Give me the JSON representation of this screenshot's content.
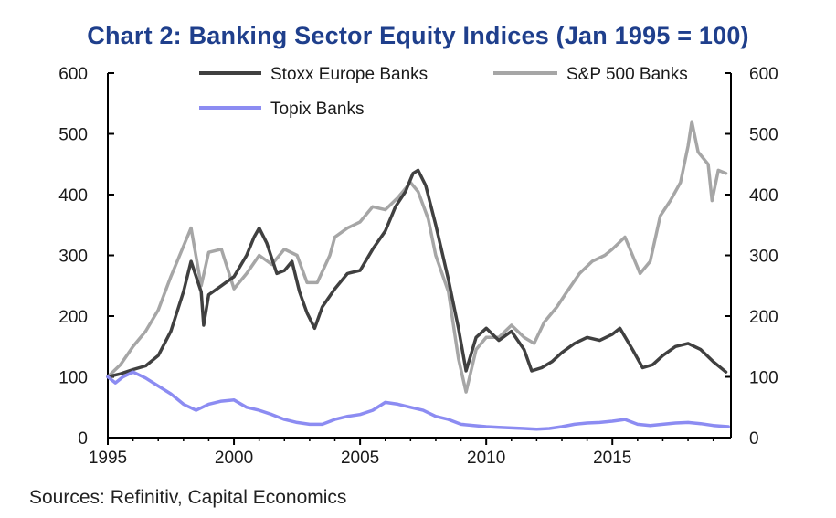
{
  "title": "Chart 2: Banking Sector Equity Indices (Jan 1995 = 100)",
  "source": "Sources: Refinitiv, Capital Economics",
  "chart_data": {
    "type": "line",
    "title": "Chart 2: Banking Sector Equity Indices (Jan 1995 = 100)",
    "xlabel": "",
    "ylabel": "",
    "xlim": [
      1995,
      2019.7
    ],
    "ylim": [
      0,
      600
    ],
    "y_ticks": [
      0,
      100,
      200,
      300,
      400,
      500,
      600
    ],
    "y_tick_labels": [
      "0",
      "100",
      "200",
      "300",
      "400",
      "500",
      "600"
    ],
    "x_ticks": [
      1995,
      2000,
      2005,
      2010,
      2015
    ],
    "x_tick_labels": [
      "1995",
      "2000",
      "2005",
      "2010",
      "2015"
    ],
    "legend_position": "top",
    "series": [
      {
        "name": "Stoxx Europe Banks",
        "color": "#404040",
        "points": [
          [
            1995.0,
            100
          ],
          [
            1995.5,
            105
          ],
          [
            1996.0,
            112
          ],
          [
            1996.5,
            118
          ],
          [
            1997.0,
            135
          ],
          [
            1997.5,
            175
          ],
          [
            1998.0,
            240
          ],
          [
            1998.3,
            290
          ],
          [
            1998.7,
            240
          ],
          [
            1998.8,
            185
          ],
          [
            1999.0,
            235
          ],
          [
            1999.5,
            250
          ],
          [
            2000.0,
            265
          ],
          [
            2000.5,
            300
          ],
          [
            2000.8,
            330
          ],
          [
            2001.0,
            345
          ],
          [
            2001.3,
            320
          ],
          [
            2001.7,
            270
          ],
          [
            2002.0,
            275
          ],
          [
            2002.3,
            290
          ],
          [
            2002.6,
            240
          ],
          [
            2002.9,
            205
          ],
          [
            2003.2,
            180
          ],
          [
            2003.5,
            215
          ],
          [
            2004.0,
            245
          ],
          [
            2004.5,
            270
          ],
          [
            2005.0,
            275
          ],
          [
            2005.5,
            310
          ],
          [
            2006.0,
            340
          ],
          [
            2006.4,
            380
          ],
          [
            2006.8,
            405
          ],
          [
            2007.1,
            435
          ],
          [
            2007.3,
            440
          ],
          [
            2007.6,
            415
          ],
          [
            2008.0,
            350
          ],
          [
            2008.5,
            260
          ],
          [
            2008.9,
            180
          ],
          [
            2009.2,
            110
          ],
          [
            2009.6,
            165
          ],
          [
            2010.0,
            180
          ],
          [
            2010.5,
            160
          ],
          [
            2011.0,
            175
          ],
          [
            2011.5,
            145
          ],
          [
            2011.8,
            110
          ],
          [
            2012.2,
            115
          ],
          [
            2012.6,
            125
          ],
          [
            2013.0,
            140
          ],
          [
            2013.5,
            155
          ],
          [
            2014.0,
            165
          ],
          [
            2014.5,
            160
          ],
          [
            2015.0,
            170
          ],
          [
            2015.3,
            180
          ],
          [
            2015.8,
            145
          ],
          [
            2016.2,
            115
          ],
          [
            2016.6,
            120
          ],
          [
            2017.0,
            135
          ],
          [
            2017.5,
            150
          ],
          [
            2018.0,
            155
          ],
          [
            2018.5,
            145
          ],
          [
            2019.0,
            125
          ],
          [
            2019.5,
            108
          ]
        ]
      },
      {
        "name": "S&P 500 Banks",
        "color": "#a6a6a6",
        "points": [
          [
            1995.0,
            100
          ],
          [
            1995.5,
            120
          ],
          [
            1996.0,
            150
          ],
          [
            1996.5,
            175
          ],
          [
            1997.0,
            210
          ],
          [
            1997.5,
            265
          ],
          [
            1998.0,
            315
          ],
          [
            1998.3,
            345
          ],
          [
            1998.7,
            250
          ],
          [
            1999.0,
            305
          ],
          [
            1999.5,
            310
          ],
          [
            2000.0,
            245
          ],
          [
            2000.5,
            270
          ],
          [
            2001.0,
            300
          ],
          [
            2001.5,
            285
          ],
          [
            2002.0,
            310
          ],
          [
            2002.5,
            300
          ],
          [
            2002.9,
            255
          ],
          [
            2003.3,
            255
          ],
          [
            2003.8,
            300
          ],
          [
            2004.0,
            330
          ],
          [
            2004.5,
            345
          ],
          [
            2005.0,
            355
          ],
          [
            2005.5,
            380
          ],
          [
            2006.0,
            375
          ],
          [
            2006.5,
            395
          ],
          [
            2007.0,
            420
          ],
          [
            2007.3,
            405
          ],
          [
            2007.7,
            360
          ],
          [
            2008.0,
            300
          ],
          [
            2008.5,
            240
          ],
          [
            2008.9,
            130
          ],
          [
            2009.2,
            75
          ],
          [
            2009.6,
            145
          ],
          [
            2010.0,
            165
          ],
          [
            2010.5,
            165
          ],
          [
            2011.0,
            185
          ],
          [
            2011.5,
            165
          ],
          [
            2011.9,
            155
          ],
          [
            2012.3,
            190
          ],
          [
            2012.8,
            215
          ],
          [
            2013.2,
            240
          ],
          [
            2013.7,
            270
          ],
          [
            2014.2,
            290
          ],
          [
            2014.7,
            300
          ],
          [
            2015.0,
            310
          ],
          [
            2015.5,
            330
          ],
          [
            2015.8,
            300
          ],
          [
            2016.1,
            270
          ],
          [
            2016.5,
            290
          ],
          [
            2016.9,
            365
          ],
          [
            2017.3,
            390
          ],
          [
            2017.7,
            420
          ],
          [
            2018.0,
            480
          ],
          [
            2018.15,
            520
          ],
          [
            2018.4,
            470
          ],
          [
            2018.8,
            450
          ],
          [
            2018.95,
            390
          ],
          [
            2019.2,
            440
          ],
          [
            2019.5,
            435
          ]
        ]
      },
      {
        "name": "Topix Banks",
        "color": "#8c8cf2",
        "points": [
          [
            1995.0,
            100
          ],
          [
            1995.3,
            90
          ],
          [
            1995.6,
            100
          ],
          [
            1996.0,
            108
          ],
          [
            1996.5,
            98
          ],
          [
            1997.0,
            85
          ],
          [
            1997.5,
            72
          ],
          [
            1998.0,
            55
          ],
          [
            1998.5,
            45
          ],
          [
            1999.0,
            55
          ],
          [
            1999.5,
            60
          ],
          [
            2000.0,
            62
          ],
          [
            2000.5,
            50
          ],
          [
            2001.0,
            45
          ],
          [
            2001.5,
            38
          ],
          [
            2002.0,
            30
          ],
          [
            2002.5,
            25
          ],
          [
            2003.0,
            22
          ],
          [
            2003.5,
            22
          ],
          [
            2004.0,
            30
          ],
          [
            2004.5,
            35
          ],
          [
            2005.0,
            38
          ],
          [
            2005.5,
            45
          ],
          [
            2006.0,
            58
          ],
          [
            2006.5,
            55
          ],
          [
            2007.0,
            50
          ],
          [
            2007.5,
            45
          ],
          [
            2008.0,
            35
          ],
          [
            2008.5,
            30
          ],
          [
            2009.0,
            22
          ],
          [
            2009.5,
            20
          ],
          [
            2010.0,
            18
          ],
          [
            2010.5,
            17
          ],
          [
            2011.0,
            16
          ],
          [
            2011.5,
            15
          ],
          [
            2012.0,
            14
          ],
          [
            2012.5,
            15
          ],
          [
            2013.0,
            18
          ],
          [
            2013.5,
            22
          ],
          [
            2014.0,
            24
          ],
          [
            2014.5,
            25
          ],
          [
            2015.0,
            27
          ],
          [
            2015.5,
            30
          ],
          [
            2016.0,
            22
          ],
          [
            2016.5,
            20
          ],
          [
            2017.0,
            22
          ],
          [
            2017.5,
            24
          ],
          [
            2018.0,
            25
          ],
          [
            2018.5,
            23
          ],
          [
            2019.0,
            20
          ],
          [
            2019.6,
            18
          ]
        ]
      }
    ]
  }
}
